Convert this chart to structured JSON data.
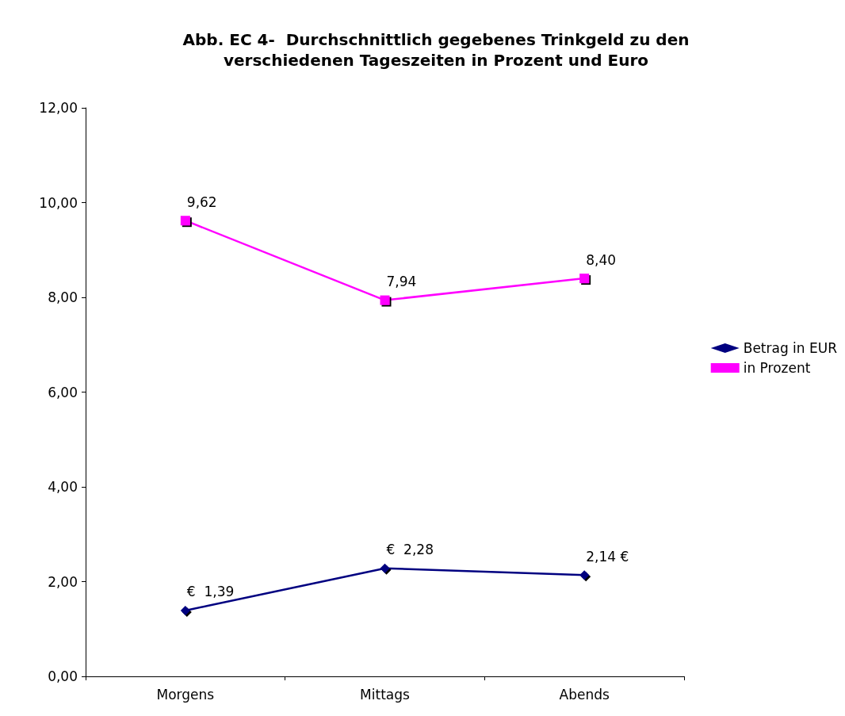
{
  "chart_data": {
    "type": "line",
    "title": "Abb. EC 4-  Durchschnittlich gegebenes Trinkgeld zu den\nverschiedenen Tageszeiten in Prozent und Euro",
    "categories": [
      "Morgens",
      "Mittags",
      "Abends"
    ],
    "series": [
      {
        "name": "Betrag in EUR",
        "color": "#000080",
        "marker": "diamond",
        "values": [
          1.39,
          2.28,
          2.14
        ],
        "value_labels": [
          "€  1,39",
          "€  2,28",
          "2,14 €"
        ]
      },
      {
        "name": "in Prozent",
        "color": "#ff00ff",
        "marker": "square",
        "values": [
          9.62,
          7.94,
          8.4
        ],
        "value_labels": [
          "9,62",
          "7,94",
          "8,40"
        ]
      }
    ],
    "ylim": [
      0,
      12
    ],
    "yticks": [
      {
        "value": 0,
        "label": "0,00"
      },
      {
        "value": 2,
        "label": "2,00"
      },
      {
        "value": 4,
        "label": "4,00"
      },
      {
        "value": 6,
        "label": "6,00"
      },
      {
        "value": 8,
        "label": "8,00"
      },
      {
        "value": 10,
        "label": "10,00"
      },
      {
        "value": 12,
        "label": "12,00"
      }
    ],
    "grid": false,
    "legend": "right",
    "line_style": "solid"
  }
}
